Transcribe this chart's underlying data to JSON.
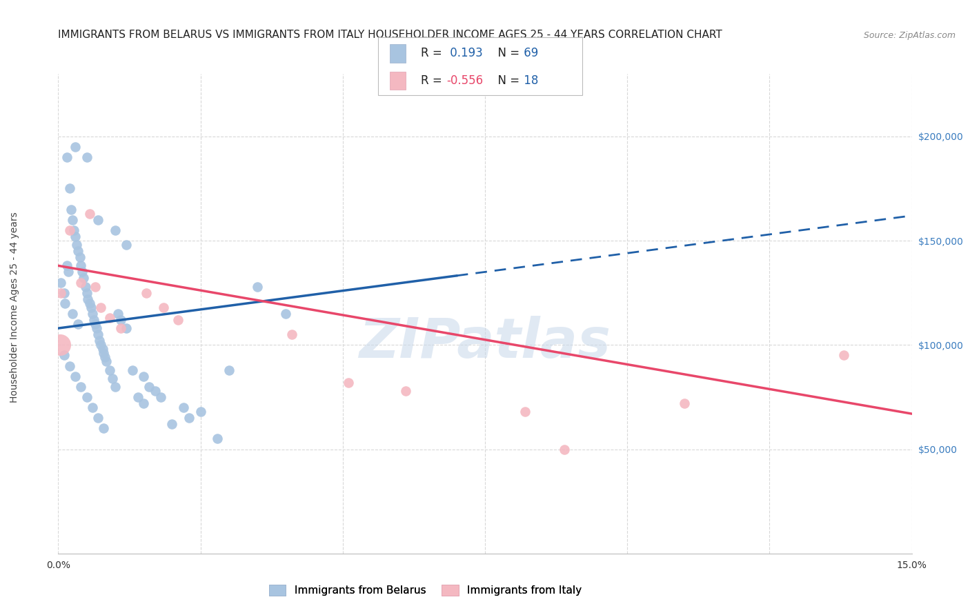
{
  "title": "IMMIGRANTS FROM BELARUS VS IMMIGRANTS FROM ITALY HOUSEHOLDER INCOME AGES 25 - 44 YEARS CORRELATION CHART",
  "source": "Source: ZipAtlas.com",
  "ylabel": "Householder Income Ages 25 - 44 years",
  "xlim": [
    0.0,
    15.0
  ],
  "ylim": [
    0,
    230000
  ],
  "yticks": [
    50000,
    100000,
    150000,
    200000
  ],
  "ytick_labels": [
    "$50,000",
    "$100,000",
    "$150,000",
    "$200,000"
  ],
  "xticks": [
    0.0,
    2.5,
    5.0,
    7.5,
    10.0,
    12.5,
    15.0
  ],
  "xtick_labels": [
    "0.0%",
    "",
    "",
    "",
    "",
    "",
    "15.0%"
  ],
  "watermark": "ZIPatlas",
  "legend_R_blue": "0.193",
  "legend_N_blue": "69",
  "legend_R_pink": "-0.556",
  "legend_N_pink": "18",
  "blue_color": "#a8c4e0",
  "pink_color": "#f4b8c1",
  "blue_line_color": "#2060a8",
  "pink_line_color": "#e8476a",
  "blue_scatter_x": [
    0.05,
    0.1,
    0.12,
    0.15,
    0.18,
    0.2,
    0.22,
    0.25,
    0.28,
    0.3,
    0.32,
    0.35,
    0.38,
    0.4,
    0.42,
    0.45,
    0.48,
    0.5,
    0.52,
    0.55,
    0.58,
    0.6,
    0.62,
    0.65,
    0.68,
    0.7,
    0.72,
    0.75,
    0.78,
    0.8,
    0.82,
    0.85,
    0.9,
    0.95,
    1.0,
    1.05,
    1.1,
    1.2,
    1.3,
    1.4,
    1.5,
    1.6,
    1.7,
    1.8,
    2.0,
    2.2,
    2.5,
    2.8,
    0.15,
    0.3,
    0.5,
    0.7,
    1.0,
    1.2,
    0.1,
    0.2,
    0.3,
    0.4,
    0.5,
    0.6,
    0.7,
    0.8,
    0.25,
    0.35,
    1.5,
    2.3,
    3.0,
    3.5,
    4.0
  ],
  "blue_scatter_y": [
    130000,
    125000,
    120000,
    138000,
    135000,
    175000,
    165000,
    160000,
    155000,
    152000,
    148000,
    145000,
    142000,
    138000,
    135000,
    132000,
    128000,
    125000,
    122000,
    120000,
    118000,
    115000,
    112000,
    110000,
    108000,
    105000,
    102000,
    100000,
    98000,
    96000,
    94000,
    92000,
    88000,
    84000,
    80000,
    115000,
    112000,
    108000,
    88000,
    75000,
    85000,
    80000,
    78000,
    75000,
    62000,
    70000,
    68000,
    55000,
    190000,
    195000,
    190000,
    160000,
    155000,
    148000,
    95000,
    90000,
    85000,
    80000,
    75000,
    70000,
    65000,
    60000,
    115000,
    110000,
    72000,
    65000,
    88000,
    128000,
    115000
  ],
  "pink_scatter_x": [
    0.05,
    0.2,
    0.4,
    0.55,
    0.65,
    0.75,
    0.9,
    1.1,
    1.55,
    1.85,
    2.1,
    4.1,
    5.1,
    6.1,
    8.2,
    8.9,
    11.0,
    13.8
  ],
  "pink_scatter_y": [
    125000,
    155000,
    130000,
    163000,
    128000,
    118000,
    113000,
    108000,
    125000,
    118000,
    112000,
    105000,
    82000,
    78000,
    68000,
    50000,
    72000,
    95000
  ],
  "pink_large_x": 0.03,
  "pink_large_y": 100000,
  "blue_reg_x0": 0.0,
  "blue_reg_y0": 108000,
  "blue_reg_x1": 15.0,
  "blue_reg_y1": 162000,
  "blue_solid_end": 7.0,
  "pink_reg_x0": 0.0,
  "pink_reg_y0": 138000,
  "pink_reg_x1": 15.0,
  "pink_reg_y1": 67000,
  "background_color": "#ffffff",
  "grid_color": "#d8d8d8",
  "title_fontsize": 11,
  "axis_label_fontsize": 10,
  "tick_fontsize": 10,
  "ytick_color": "#3a7cbf",
  "source_color": "#888888"
}
